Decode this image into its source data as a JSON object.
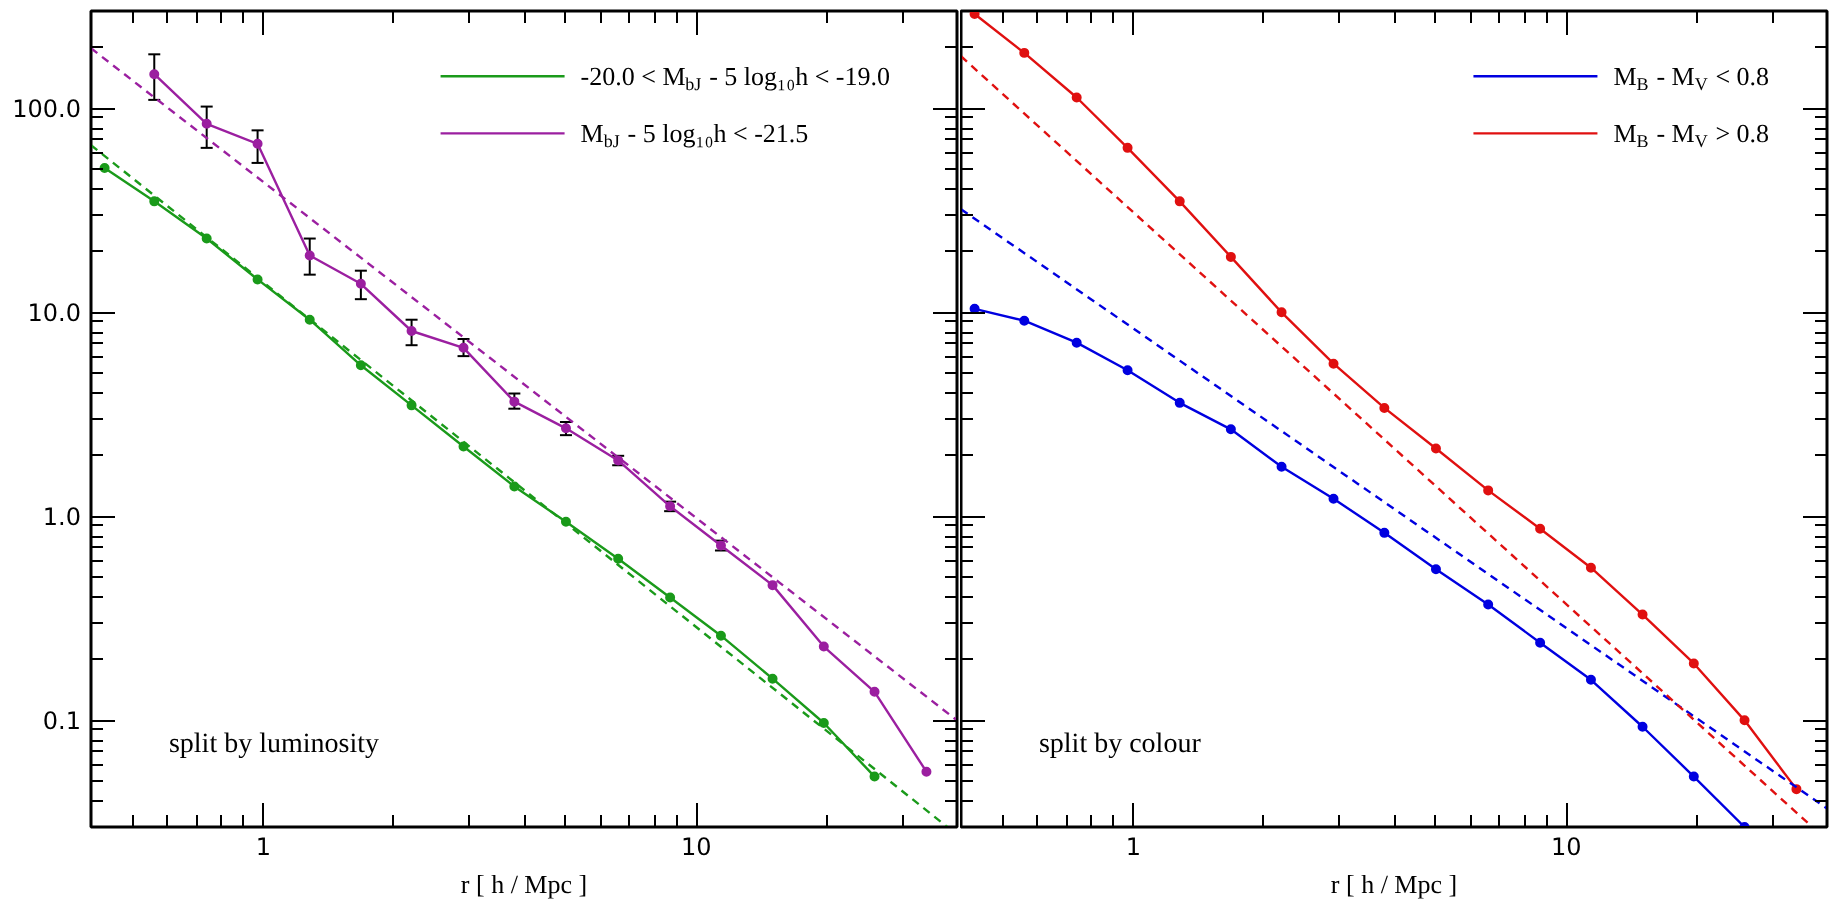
{
  "chart_data": [
    {
      "type": "line",
      "xlabel": "r [ h / Mpc ]",
      "log": "xy",
      "xlim": [
        0.4,
        40
      ],
      "ylim": [
        0.03,
        300
      ],
      "xticks": [
        1,
        10
      ],
      "yticks": [
        0.1,
        {
          "value": 1,
          "label": "1.0"
        },
        {
          "value": 10,
          "label": "10.0"
        },
        {
          "value": 100,
          "label": "100.0"
        }
      ],
      "grid": false,
      "legend": "top right",
      "marker": "circle",
      "line_style": "solid",
      "annotations": [
        "split by luminosity"
      ],
      "x": [
        0.43,
        0.56,
        0.74,
        0.97,
        1.28,
        1.68,
        2.2,
        2.9,
        3.8,
        5.0,
        6.6,
        8.7,
        11.4,
        15.0,
        19.7,
        25.8,
        34
      ],
      "series": [
        {
          "name": "-20.0 < M$_{bJ}$ - 5 log₁₀h < -19.0",
          "color": "#1a9a1a",
          "values": [
            51,
            35,
            23,
            14.5,
            9.2,
            5.5,
            3.5,
            2.2,
            1.4,
            0.94,
            0.62,
            0.4,
            0.26,
            0.16,
            0.097,
            0.053,
            null
          ]
        },
        {
          "name": "M$_{bJ}$ - 5 log₁₀h < -21.5",
          "color": "#9b1fa0",
          "values": [
            null,
            147,
            84,
            67,
            19,
            13.8,
            8.1,
            6.7,
            3.65,
            2.7,
            1.88,
            1.12,
            0.72,
            0.46,
            0.23,
            0.138,
            0.056
          ],
          "errors": [
            null,
            [
              110,
              184
            ],
            [
              64,
              102
            ],
            [
              54,
              78
            ],
            [
              15.3,
              23
            ],
            [
              11.6,
              16
            ],
            [
              6.9,
              9.2
            ],
            [
              6.1,
              7.4
            ],
            [
              3.37,
              4.0
            ],
            [
              2.5,
              2.9
            ],
            [
              1.78,
              1.98
            ],
            [
              1.06,
              1.18
            ],
            [
              0.68,
              0.76
            ],
            null,
            null,
            null,
            null
          ]
        },
        {
          "color": "#1a9a1a",
          "x": [
            0.4,
            38
          ],
          "values": [
            66,
            0.03
          ],
          "line_style": "dashed",
          "marker": "none"
        },
        {
          "color": "#9b1fa0",
          "x": [
            0.4,
            40
          ],
          "values": [
            197,
            0.1
          ],
          "line_style": "dashed",
          "marker": "none"
        }
      ]
    },
    {
      "type": "line",
      "xlabel": "r [ h / Mpc ]",
      "log": "xy",
      "xlim": [
        0.4,
        40
      ],
      "ylim": [
        0.03,
        300
      ],
      "xticks": [
        1,
        10
      ],
      "yticks": [
        0.1,
        1,
        10,
        100
      ],
      "tick_labels": "x",
      "grid": false,
      "legend": "top right",
      "marker": "circle",
      "line_style": "solid",
      "annotations": [
        "split by colour"
      ],
      "x": [
        0.43,
        0.56,
        0.74,
        0.97,
        1.28,
        1.68,
        2.2,
        2.9,
        3.8,
        5.0,
        6.6,
        8.7,
        11.4,
        15.0,
        19.7,
        25.8,
        34
      ],
      "series": [
        {
          "name": "M$_{B}$ - M$_{V}$ < 0.8",
          "color": "#0000e0",
          "values": [
            10.4,
            9.1,
            7.1,
            5.2,
            3.6,
            2.67,
            1.75,
            1.22,
            0.83,
            0.55,
            0.37,
            0.24,
            0.158,
            0.093,
            0.053,
            0.03,
            null
          ]
        },
        {
          "name": "M$_{B}$ - M$_{V}$ > 0.8",
          "color": "#e01010",
          "values": [
            290,
            187,
            113,
            64,
            35,
            18.7,
            10,
            5.6,
            3.4,
            2.15,
            1.34,
            0.87,
            0.56,
            0.33,
            0.19,
            0.1,
            0.046
          ]
        },
        {
          "color": "#0000e0",
          "x": [
            0.4,
            40
          ],
          "values": [
            32,
            0.037
          ],
          "line_style": "dashed",
          "marker": "none"
        },
        {
          "color": "#e01010",
          "x": [
            0.4,
            37
          ],
          "values": [
            180,
            0.03
          ],
          "line_style": "dashed",
          "marker": "none"
        }
      ]
    }
  ]
}
